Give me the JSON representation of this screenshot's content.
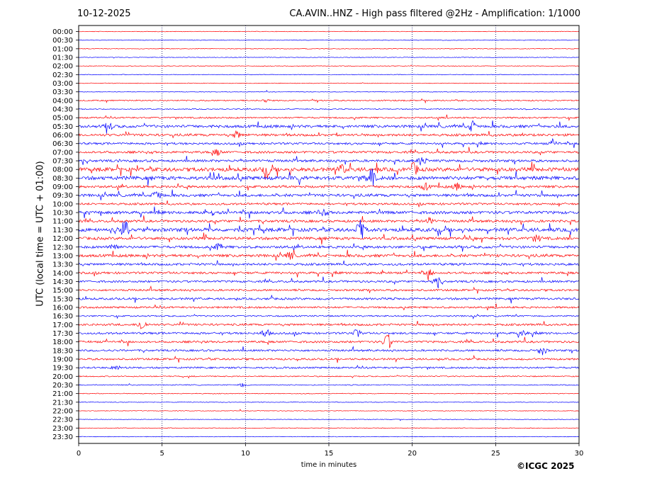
{
  "header": {
    "date": "10-12-2025",
    "title": "CA.AVIN..HNZ - High pass filtered @2Hz - Amplification: 1/1000"
  },
  "footer": {
    "copyright": "©ICGC 2025"
  },
  "chart_data": {
    "type": "line",
    "xlabel": "time in minutes",
    "ylabel": "UTC (local time = UTC + 01:00)",
    "xlim": [
      0,
      30
    ],
    "xticks": [
      "0",
      "5",
      "10",
      "15",
      "20",
      "25",
      "30"
    ],
    "grid": "vertical dotted lines at 5, 10, 15, 20, 25",
    "row_colors": [
      "#ff0000",
      "#0000ff"
    ],
    "rows": [
      "00:00",
      "00:30",
      "01:00",
      "01:30",
      "02:00",
      "02:30",
      "03:00",
      "03:30",
      "04:00",
      "04:30",
      "05:00",
      "05:30",
      "06:00",
      "06:30",
      "07:00",
      "07:30",
      "08:00",
      "08:30",
      "09:00",
      "09:30",
      "10:00",
      "10:30",
      "11:00",
      "11:30",
      "12:00",
      "12:30",
      "13:00",
      "13:30",
      "14:00",
      "14:30",
      "15:00",
      "15:30",
      "16:00",
      "16:30",
      "17:00",
      "17:30",
      "18:00",
      "18:30",
      "19:00",
      "19:30",
      "20:00",
      "20:30",
      "21:00",
      "21:30",
      "22:00",
      "22:30",
      "23:00",
      "23:30"
    ],
    "activity": [
      0.05,
      0.05,
      0.06,
      0.05,
      0.05,
      0.06,
      0.05,
      0.06,
      0.25,
      0.15,
      0.35,
      0.7,
      0.6,
      0.5,
      0.55,
      0.6,
      1.0,
      0.95,
      0.6,
      0.7,
      0.5,
      0.75,
      0.6,
      0.95,
      0.7,
      0.65,
      0.7,
      0.55,
      0.55,
      0.5,
      0.45,
      0.5,
      0.45,
      0.3,
      0.5,
      0.5,
      0.5,
      0.45,
      0.45,
      0.4,
      0.2,
      0.15,
      0.1,
      0.06,
      0.05,
      0.05,
      0.05,
      0.05
    ],
    "events": [
      {
        "row": "04:00",
        "minute": 11.2,
        "amplitude": 0.25
      },
      {
        "row": "05:30",
        "minute": 23.6,
        "amplitude": 0.9
      },
      {
        "row": "05:30",
        "minute": 1.8,
        "amplitude": 0.6
      },
      {
        "row": "06:00",
        "minute": 9.5,
        "amplitude": 0.5
      },
      {
        "row": "06:30",
        "minute": 28.5,
        "amplitude": 0.45
      },
      {
        "row": "07:00",
        "minute": 8.3,
        "amplitude": 0.45
      },
      {
        "row": "07:30",
        "minute": 20.6,
        "amplitude": 0.7
      },
      {
        "row": "08:00",
        "minute": 11.3,
        "amplitude": 0.9
      },
      {
        "row": "08:00",
        "minute": 20.1,
        "amplitude": 0.9
      },
      {
        "row": "08:00",
        "minute": 15.8,
        "amplitude": 0.6
      },
      {
        "row": "08:30",
        "minute": 17.5,
        "amplitude": 1.7
      },
      {
        "row": "09:00",
        "minute": 20.8,
        "amplitude": 0.5
      },
      {
        "row": "09:00",
        "minute": 22.7,
        "amplitude": 0.5
      },
      {
        "row": "09:30",
        "minute": 4.7,
        "amplitude": 0.9
      },
      {
        "row": "10:30",
        "minute": 14.6,
        "amplitude": 0.6
      },
      {
        "row": "11:00",
        "minute": 21.0,
        "amplitude": 0.5
      },
      {
        "row": "11:30",
        "minute": 2.8,
        "amplitude": 1.7
      },
      {
        "row": "11:30",
        "minute": 16.9,
        "amplitude": 1.6
      },
      {
        "row": "12:00",
        "minute": 27.5,
        "amplitude": 0.45
      },
      {
        "row": "12:30",
        "minute": 2.1,
        "amplitude": 0.7
      },
      {
        "row": "12:30",
        "minute": 8.4,
        "amplitude": 0.5
      },
      {
        "row": "13:00",
        "minute": 12.7,
        "amplitude": 0.6
      },
      {
        "row": "14:00",
        "minute": 21.0,
        "amplitude": 0.5
      },
      {
        "row": "14:30",
        "minute": 21.5,
        "amplitude": 0.6
      },
      {
        "row": "17:00",
        "minute": 3.8,
        "amplitude": 0.9
      },
      {
        "row": "17:30",
        "minute": 11.2,
        "amplitude": 0.7
      },
      {
        "row": "17:30",
        "minute": 16.7,
        "amplitude": 0.6
      },
      {
        "row": "17:30",
        "minute": 26.6,
        "amplitude": 0.6
      },
      {
        "row": "18:00",
        "minute": 18.5,
        "amplitude": 1.3
      },
      {
        "row": "18:30",
        "minute": 27.8,
        "amplitude": 0.7
      },
      {
        "row": "19:30",
        "minute": 2.2,
        "amplitude": 0.4
      },
      {
        "row": "20:30",
        "minute": 9.8,
        "amplitude": 0.3
      }
    ]
  }
}
